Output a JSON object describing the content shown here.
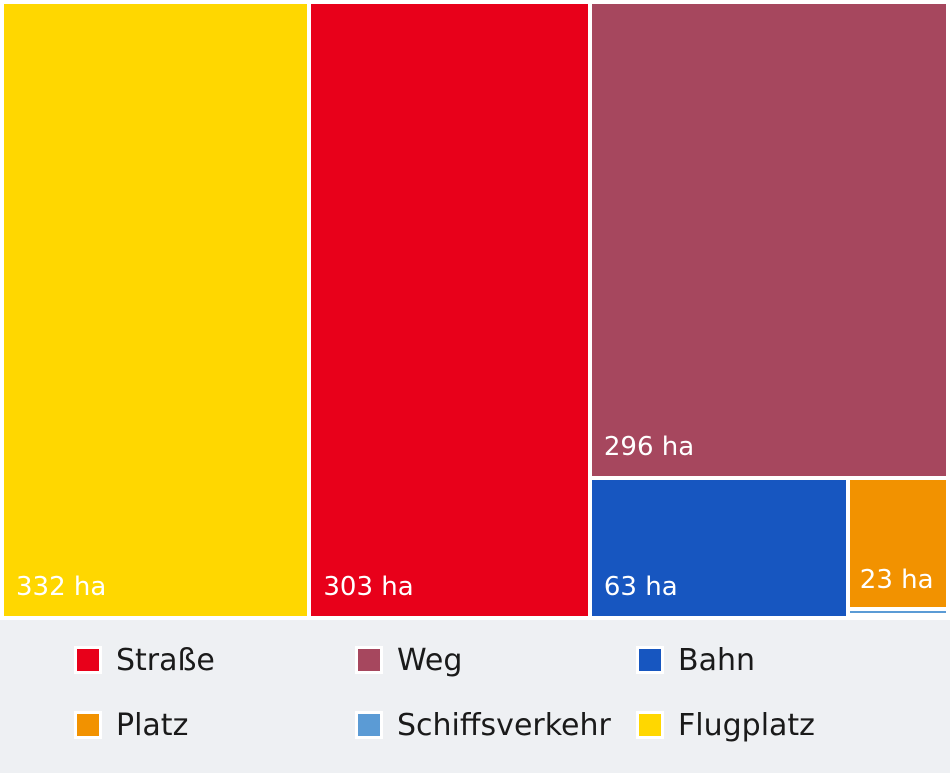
{
  "chart_data": {
    "type": "treemap",
    "unit": "ha",
    "series": [
      {
        "name": "Flugplatz",
        "value": 332,
        "label": "332 ha",
        "color": "#ffd700"
      },
      {
        "name": "Straße",
        "value": 303,
        "label": "303 ha",
        "color": "#e8001a"
      },
      {
        "name": "Weg",
        "value": 296,
        "label": "296 ha",
        "color": "#a6475e"
      },
      {
        "name": "Bahn",
        "value": 63,
        "label": "63 ha",
        "color": "#1756c0"
      },
      {
        "name": "Platz",
        "value": 23,
        "label": "23 ha",
        "color": "#f29200"
      },
      {
        "name": "Schiffsverkehr",
        "value": 0.5,
        "label": "",
        "color": "#5b9bd5"
      }
    ],
    "legend": [
      {
        "label": "Straße",
        "color": "#e8001a"
      },
      {
        "label": "Weg",
        "color": "#a6475e"
      },
      {
        "label": "Bahn",
        "color": "#1756c0"
      },
      {
        "label": "Platz",
        "color": "#f29200"
      },
      {
        "label": "Schiffsverkehr",
        "color": "#5b9bd5"
      },
      {
        "label": "Flugplatz",
        "color": "#ffd700"
      }
    ]
  }
}
